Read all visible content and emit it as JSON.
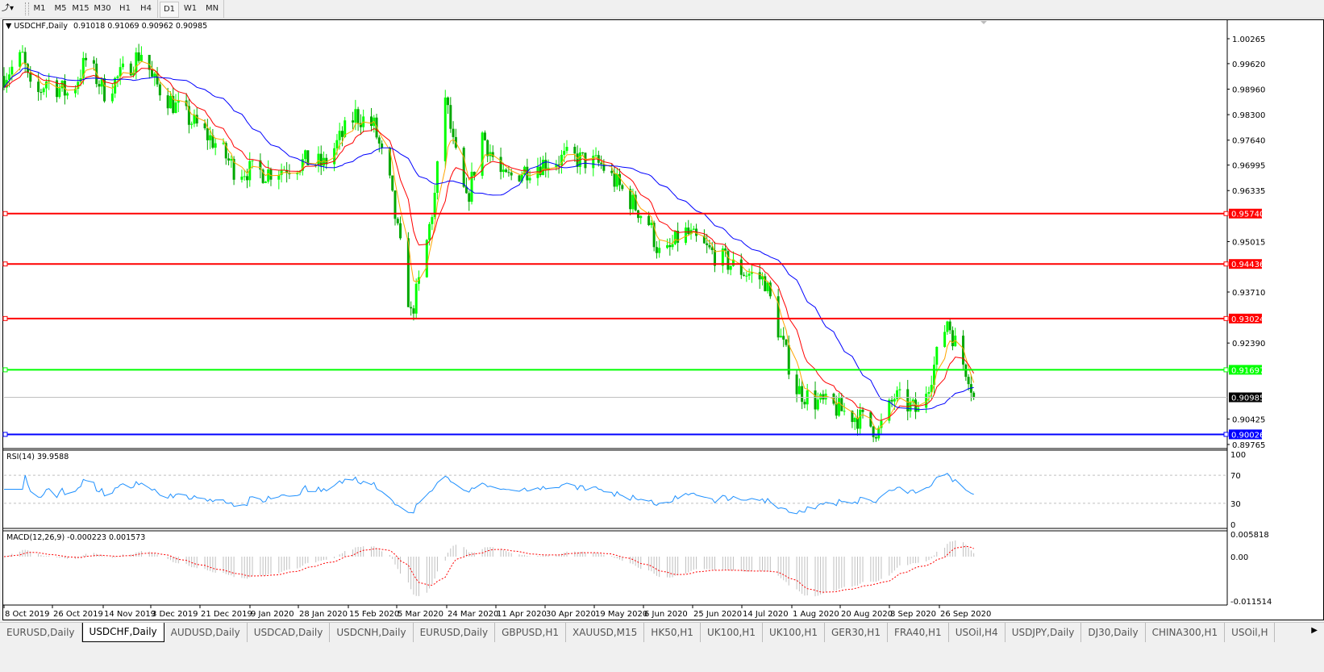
{
  "toolbar": {
    "tools_icon": "draw-tools-icon",
    "timeframes": [
      "M1",
      "M5",
      "M15",
      "M30",
      "H1",
      "H4",
      "D1",
      "W1",
      "MN"
    ],
    "active_timeframe": "D1"
  },
  "chart": {
    "symbol_title": "USDCHF,Daily",
    "ohlc": "0.91018 0.91069 0.90962 0.90985",
    "colors": {
      "bull": "#00ff00",
      "bear": "#00a800",
      "ma_fast": "#ffa500",
      "ma_mid": "#ff0000",
      "ma_slow": "#0000ff",
      "rsi": "#1e90ff",
      "macd_signal": "#ff0000",
      "macd_hist": "#c0c0c0"
    },
    "price_axis_labels": [
      "1.00265",
      "0.99620",
      "0.98960",
      "0.98300",
      "0.97640",
      "0.96995",
      "0.96335",
      "0.95015",
      "0.93710",
      "0.92390",
      "0.90425",
      "0.89765"
    ],
    "price_axis_values": [
      1.00265,
      0.9962,
      0.9896,
      0.983,
      0.9764,
      0.96995,
      0.96335,
      0.95015,
      0.9371,
      0.9239,
      0.90425,
      0.89765
    ],
    "hlines": [
      {
        "label": "0.95740",
        "price": 0.9574,
        "color": "#ff0000"
      },
      {
        "label": "0.94436",
        "price": 0.94436,
        "color": "#ff0000"
      },
      {
        "label": "0.93024",
        "price": 0.93024,
        "color": "#ff0000"
      },
      {
        "label": "0.91697",
        "price": 0.91697,
        "color": "#00ff00"
      },
      {
        "label": "0.90026",
        "price": 0.90026,
        "color": "#0000ff"
      }
    ],
    "current_price": {
      "label": "0.90985",
      "price": 0.90985
    },
    "time_axis_labels": [
      "8 Oct 2019",
      "26 Oct 2019",
      "14 Nov 2019",
      "3 Dec 2019",
      "21 Dec 2019",
      "9 Jan 2020",
      "28 Jan 2020",
      "15 Feb 2020",
      "5 Mar 2020",
      "24 Mar 2020",
      "11 Apr 2020",
      "30 Apr 2020",
      "19 May 2020",
      "6 Jun 2020",
      "25 Jun 2020",
      "14 Jul 2020",
      "1 Aug 2020",
      "20 Aug 2020",
      "8 Sep 2020",
      "26 Sep 2020"
    ]
  },
  "chart_data": {
    "type": "candlestick",
    "price_path": [
      [
        "2019-10-08",
        0.993
      ],
      [
        "2019-10-15",
        0.998
      ],
      [
        "2019-10-19",
        0.986
      ],
      [
        "2019-10-24",
        0.992
      ],
      [
        "2019-11-02",
        0.988
      ],
      [
        "2019-11-08",
        0.997
      ],
      [
        "2019-11-15",
        0.989
      ],
      [
        "2019-11-21",
        0.993
      ],
      [
        "2019-11-30",
        1.0
      ],
      [
        "2019-12-03",
        0.992
      ],
      [
        "2019-12-12",
        0.985
      ],
      [
        "2019-12-28",
        0.975
      ],
      [
        "2020-01-03",
        0.969
      ],
      [
        "2020-01-15",
        0.968
      ],
      [
        "2020-01-31",
        0.971
      ],
      [
        "2020-02-06",
        0.97
      ],
      [
        "2020-02-18",
        0.983
      ],
      [
        "2020-02-25",
        0.98
      ],
      [
        "2020-03-02",
        0.965
      ],
      [
        "2020-03-08",
        0.94
      ],
      [
        "2020-03-10",
        0.931
      ],
      [
        "2020-03-14",
        0.942
      ],
      [
        "2020-03-19",
        0.962
      ],
      [
        "2020-03-23",
        0.988
      ],
      [
        "2020-03-26",
        0.975
      ],
      [
        "2020-03-31",
        0.96
      ],
      [
        "2020-04-06",
        0.978
      ],
      [
        "2020-04-14",
        0.966
      ],
      [
        "2020-04-26",
        0.97
      ],
      [
        "2020-05-09",
        0.972
      ],
      [
        "2020-05-21",
        0.97
      ],
      [
        "2020-05-27",
        0.965
      ],
      [
        "2020-06-08",
        0.955
      ],
      [
        "2020-06-13",
        0.945
      ],
      [
        "2020-06-21",
        0.953
      ],
      [
        "2020-06-30",
        0.948
      ],
      [
        "2020-07-12",
        0.943
      ],
      [
        "2020-07-22",
        0.94
      ],
      [
        "2020-07-28",
        0.925
      ],
      [
        "2020-08-03",
        0.912
      ],
      [
        "2020-08-09",
        0.909
      ],
      [
        "2020-08-18",
        0.907
      ],
      [
        "2020-08-28",
        0.904
      ],
      [
        "2020-09-03",
        0.901
      ],
      [
        "2020-09-09",
        0.91
      ],
      [
        "2020-09-18",
        0.906
      ],
      [
        "2020-09-24",
        0.918
      ],
      [
        "2020-09-29",
        0.93
      ],
      [
        "2020-10-04",
        0.92
      ],
      [
        "2020-10-07",
        0.916
      ],
      [
        "2020-10-09",
        0.90985
      ]
    ],
    "rsi": {
      "label": "RSI(14) 39.9588",
      "levels": [
        70,
        30
      ],
      "axis_labels": [
        "100",
        "70",
        "30",
        "0"
      ],
      "range": [
        0,
        100
      ]
    },
    "macd": {
      "label": "MACD(12,26,9) -0.000223 0.001573",
      "axis_labels": [
        "0.005818",
        "0.00",
        "-0.011514"
      ],
      "range": [
        -0.011514,
        0.005818
      ]
    }
  },
  "tabs": {
    "items": [
      "EURUSD,Daily",
      "USDCHF,Daily",
      "AUDUSD,Daily",
      "USDCAD,Daily",
      "USDCNH,Daily",
      "EURUSD,Daily",
      "GBPUSD,H1",
      "XAUUSD,M15",
      "HK50,H1",
      "UK100,H1",
      "UK100,H1",
      "GER30,H1",
      "FRA40,H1",
      "USOil,H4",
      "USDJPY,Daily",
      "DJ30,Daily",
      "CHINA300,H1",
      "USOil,H"
    ],
    "active": "USDCHF,Daily",
    "scroll_icon": "scroll-right-icon"
  }
}
